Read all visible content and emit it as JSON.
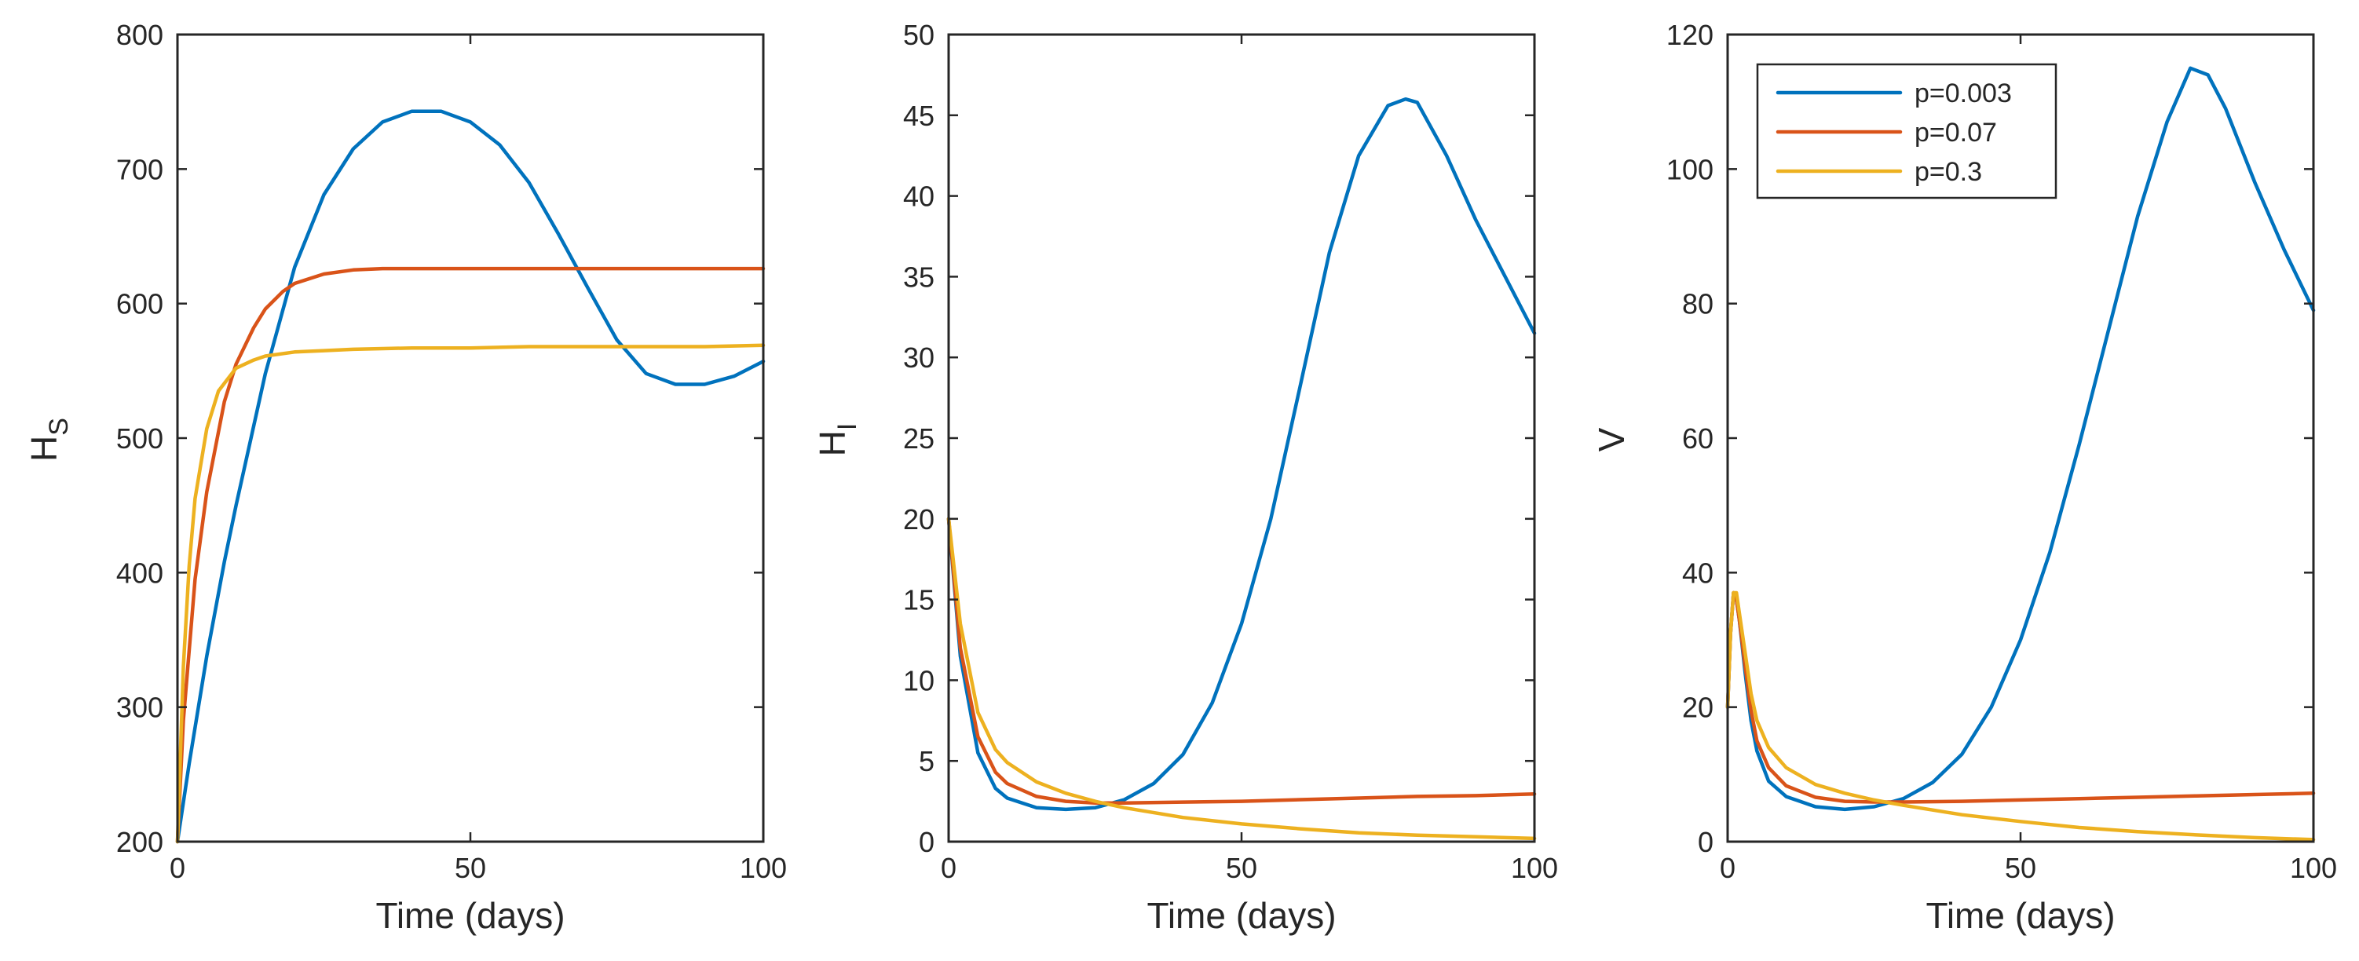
{
  "chart_data": [
    {
      "type": "line",
      "id": "hs",
      "xlabel": "Time (days)",
      "ylabel": "H",
      "ylabel_sub": "S",
      "xlim": [
        0,
        100
      ],
      "ylim": [
        200,
        800
      ],
      "xticks": [
        0,
        50,
        100
      ],
      "yticks": [
        200,
        300,
        400,
        500,
        600,
        700,
        800
      ],
      "grid": false,
      "series": [
        {
          "name": "p=0.003",
          "color": "#0072BD",
          "x": [
            0,
            2,
            5,
            8,
            10,
            15,
            20,
            25,
            30,
            35,
            40,
            45,
            50,
            55,
            60,
            65,
            70,
            75,
            80,
            85,
            90,
            95,
            100
          ],
          "y": [
            200,
            258,
            338,
            408,
            450,
            548,
            627,
            681,
            715,
            735,
            743,
            743,
            735,
            718,
            690,
            652,
            612,
            573,
            548,
            540,
            540,
            546,
            557
          ]
        },
        {
          "name": "p=0.07",
          "color": "#D95319",
          "x": [
            0,
            1,
            3,
            5,
            8,
            10,
            13,
            15,
            18,
            20,
            25,
            30,
            35,
            40,
            50,
            60,
            70,
            80,
            90,
            100
          ],
          "y": [
            200,
            290,
            395,
            460,
            527,
            555,
            582,
            596,
            609,
            615,
            622,
            625,
            626,
            626,
            626,
            626,
            626,
            626,
            626,
            626
          ]
        },
        {
          "name": "p=0.3",
          "color": "#EDB120",
          "x": [
            0,
            1,
            2,
            3,
            5,
            7,
            10,
            13,
            15,
            20,
            25,
            30,
            40,
            50,
            60,
            70,
            80,
            90,
            100
          ],
          "y": [
            200,
            330,
            405,
            455,
            507,
            535,
            552,
            558,
            561,
            564,
            565,
            566,
            567,
            567,
            568,
            568,
            568,
            568,
            569
          ]
        }
      ]
    },
    {
      "type": "line",
      "id": "hi",
      "xlabel": "Time (days)",
      "ylabel": "H",
      "ylabel_sub": "I",
      "xlim": [
        0,
        100
      ],
      "ylim": [
        0,
        50
      ],
      "xticks": [
        0,
        50,
        100
      ],
      "yticks": [
        0,
        5,
        10,
        15,
        20,
        25,
        30,
        35,
        40,
        45,
        50
      ],
      "grid": false,
      "series": [
        {
          "name": "p=0.003",
          "color": "#0072BD",
          "x": [
            0,
            2,
            5,
            8,
            10,
            15,
            20,
            25,
            30,
            35,
            40,
            45,
            50,
            55,
            60,
            65,
            70,
            75,
            78,
            80,
            85,
            90,
            95,
            100
          ],
          "y": [
            20,
            11.5,
            5.5,
            3.3,
            2.7,
            2.1,
            2.0,
            2.1,
            2.6,
            3.6,
            5.4,
            8.6,
            13.5,
            20.0,
            28.2,
            36.5,
            42.5,
            45.6,
            46.0,
            45.8,
            42.5,
            38.5,
            35.0,
            31.5
          ]
        },
        {
          "name": "p=0.07",
          "color": "#D95319",
          "x": [
            0,
            2,
            5,
            8,
            10,
            15,
            20,
            25,
            30,
            40,
            50,
            60,
            70,
            80,
            90,
            100
          ],
          "y": [
            20,
            12,
            6.5,
            4.3,
            3.6,
            2.8,
            2.5,
            2.4,
            2.4,
            2.45,
            2.5,
            2.6,
            2.7,
            2.8,
            2.85,
            2.95
          ]
        },
        {
          "name": "p=0.3",
          "color": "#EDB120",
          "x": [
            0,
            2,
            5,
            8,
            10,
            15,
            20,
            25,
            30,
            40,
            50,
            60,
            70,
            80,
            90,
            100
          ],
          "y": [
            20,
            13.5,
            8.0,
            5.7,
            4.9,
            3.7,
            3.0,
            2.5,
            2.1,
            1.5,
            1.1,
            0.8,
            0.55,
            0.4,
            0.3,
            0.2
          ]
        }
      ]
    },
    {
      "type": "line",
      "id": "v",
      "xlabel": "Time (days)",
      "ylabel": "V",
      "ylabel_sub": "",
      "xlim": [
        0,
        100
      ],
      "ylim": [
        0,
        120
      ],
      "xticks": [
        0,
        50,
        100
      ],
      "yticks": [
        0,
        20,
        40,
        60,
        80,
        100,
        120
      ],
      "grid": false,
      "legend": {
        "location": "top-left",
        "entries": [
          "p=0.003",
          "p=0.07",
          "p=0.3"
        ]
      },
      "series": [
        {
          "name": "p=0.003",
          "color": "#0072BD",
          "x": [
            0,
            0.5,
            1,
            1.5,
            2,
            3,
            4,
            5,
            7,
            10,
            15,
            20,
            25,
            30,
            35,
            40,
            45,
            50,
            55,
            60,
            65,
            70,
            75,
            79,
            82,
            85,
            90,
            95,
            100
          ],
          "y": [
            20,
            31,
            37,
            36,
            33,
            25,
            18,
            13.5,
            9,
            6.7,
            5.2,
            4.8,
            5.2,
            6.4,
            8.8,
            13,
            20,
            30,
            43,
            59,
            76,
            93,
            107,
            115,
            114,
            109,
            98,
            88,
            79
          ]
        },
        {
          "name": "p=0.07",
          "color": "#D95319",
          "x": [
            0,
            0.5,
            1,
            1.5,
            2,
            3,
            4,
            5,
            7,
            10,
            15,
            20,
            25,
            30,
            40,
            50,
            60,
            70,
            80,
            90,
            100
          ],
          "y": [
            20,
            31,
            37,
            36,
            33,
            26,
            19.5,
            15,
            11,
            8.3,
            6.6,
            6.0,
            5.9,
            5.9,
            6.0,
            6.2,
            6.4,
            6.6,
            6.8,
            7.0,
            7.2
          ]
        },
        {
          "name": "p=0.3",
          "color": "#EDB120",
          "x": [
            0,
            0.5,
            1,
            1.5,
            2,
            3,
            4,
            5,
            7,
            10,
            15,
            20,
            25,
            30,
            40,
            50,
            60,
            70,
            80,
            90,
            100
          ],
          "y": [
            20,
            31,
            37,
            37,
            34,
            28,
            22,
            18,
            14,
            11,
            8.5,
            7.2,
            6.2,
            5.4,
            4.0,
            3.0,
            2.1,
            1.5,
            1.0,
            0.6,
            0.3
          ]
        }
      ]
    }
  ]
}
